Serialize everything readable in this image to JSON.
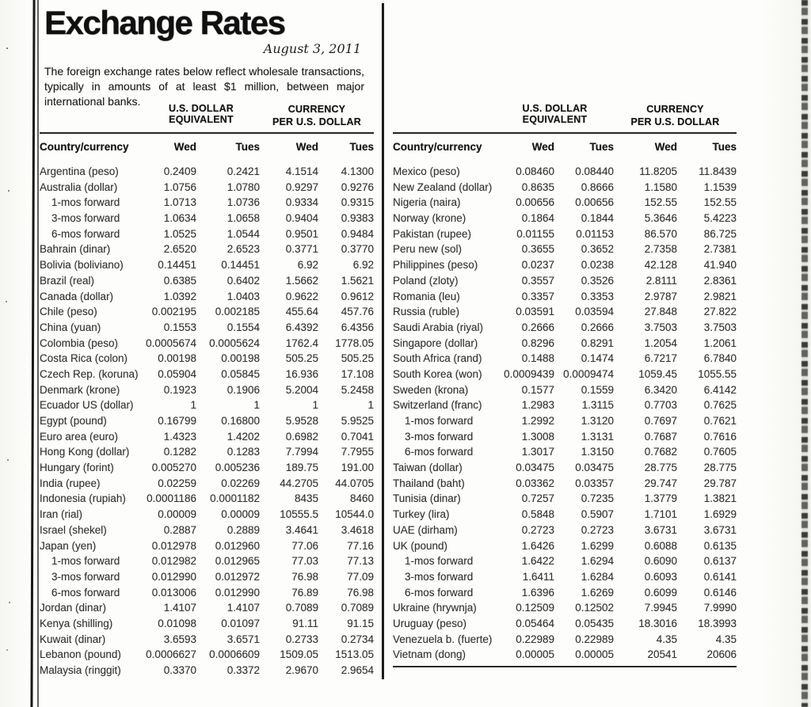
{
  "page": {
    "title": "Exchange Rates",
    "date": "August 3, 2011",
    "description": "The foreign exchange rates below reflect wholesale transactions, typically in amounts of at least $1 million, between major international banks."
  },
  "columns": {
    "group_usd": "U.S. DOLLAR EQUIVALENT",
    "group_currency_line1": "CURRENCY",
    "group_currency_line2": "PER U.S. DOLLAR",
    "country": "Country/currency",
    "day1": "Wed",
    "day2": "Tues"
  },
  "tables": {
    "left": {
      "rows": [
        {
          "country": "Argentina (peso)",
          "indent": false,
          "usd_wed": "0.2409",
          "usd_tues": "0.2421",
          "per_wed": "4.1514",
          "per_tues": "4.1300"
        },
        {
          "country": "Australia (dollar)",
          "indent": false,
          "usd_wed": "1.0756",
          "usd_tues": "1.0780",
          "per_wed": "0.9297",
          "per_tues": "0.9276"
        },
        {
          "country": "1-mos forward",
          "indent": true,
          "usd_wed": "1.0713",
          "usd_tues": "1.0736",
          "per_wed": "0.9334",
          "per_tues": "0.9315"
        },
        {
          "country": "3-mos forward",
          "indent": true,
          "usd_wed": "1.0634",
          "usd_tues": "1.0658",
          "per_wed": "0.9404",
          "per_tues": "0.9383"
        },
        {
          "country": "6-mos forward",
          "indent": true,
          "usd_wed": "1.0525",
          "usd_tues": "1.0544",
          "per_wed": "0.9501",
          "per_tues": "0.9484"
        },
        {
          "country": "Bahrain (dinar)",
          "indent": false,
          "usd_wed": "2.6520",
          "usd_tues": "2.6523",
          "per_wed": "0.3771",
          "per_tues": "0.3770"
        },
        {
          "country": "Bolivia (boliviano)",
          "indent": false,
          "usd_wed": "0.14451",
          "usd_tues": "0.14451",
          "per_wed": "6.92",
          "per_tues": "6.92"
        },
        {
          "country": "Brazil (real)",
          "indent": false,
          "usd_wed": "0.6385",
          "usd_tues": "0.6402",
          "per_wed": "1.5662",
          "per_tues": "1.5621"
        },
        {
          "country": "Canada (dollar)",
          "indent": false,
          "usd_wed": "1.0392",
          "usd_tues": "1.0403",
          "per_wed": "0.9622",
          "per_tues": "0.9612"
        },
        {
          "country": "Chile (peso)",
          "indent": false,
          "usd_wed": "0.002195",
          "usd_tues": "0.002185",
          "per_wed": "455.64",
          "per_tues": "457.76"
        },
        {
          "country": "China (yuan)",
          "indent": false,
          "usd_wed": "0.1553",
          "usd_tues": "0.1554",
          "per_wed": "6.4392",
          "per_tues": "6.4356"
        },
        {
          "country": "Colombia (peso)",
          "indent": false,
          "usd_wed": "0.0005674",
          "usd_tues": "0.0005624",
          "per_wed": "1762.4",
          "per_tues": "1778.05"
        },
        {
          "country": "Costa Rica (colon)",
          "indent": false,
          "usd_wed": "0.00198",
          "usd_tues": "0.00198",
          "per_wed": "505.25",
          "per_tues": "505.25"
        },
        {
          "country": "Czech Rep. (koruna)",
          "indent": false,
          "usd_wed": "0.05904",
          "usd_tues": "0.05845",
          "per_wed": "16.936",
          "per_tues": "17.108"
        },
        {
          "country": "Denmark (krone)",
          "indent": false,
          "usd_wed": "0.1923",
          "usd_tues": "0.1906",
          "per_wed": "5.2004",
          "per_tues": "5.2458"
        },
        {
          "country": "Ecuador US (dollar)",
          "indent": false,
          "usd_wed": "1",
          "usd_tues": "1",
          "per_wed": "1",
          "per_tues": "1"
        },
        {
          "country": "Egypt (pound)",
          "indent": false,
          "usd_wed": "0.16799",
          "usd_tues": "0.16800",
          "per_wed": "5.9528",
          "per_tues": "5.9525"
        },
        {
          "country": "Euro area (euro)",
          "indent": false,
          "usd_wed": "1.4323",
          "usd_tues": "1.4202",
          "per_wed": "0.6982",
          "per_tues": "0.7041"
        },
        {
          "country": "Hong Kong (dollar)",
          "indent": false,
          "usd_wed": "0.1282",
          "usd_tues": "0.1283",
          "per_wed": "7.7994",
          "per_tues": "7.7955"
        },
        {
          "country": "Hungary (forint)",
          "indent": false,
          "usd_wed": "0.005270",
          "usd_tues": "0.005236",
          "per_wed": "189.75",
          "per_tues": "191.00"
        },
        {
          "country": "India (rupee)",
          "indent": false,
          "usd_wed": "0.02259",
          "usd_tues": "0.02269",
          "per_wed": "44.2705",
          "per_tues": "44.0705"
        },
        {
          "country": "Indonesia (rupiah)",
          "indent": false,
          "usd_wed": "0.0001186",
          "usd_tues": "0.0001182",
          "per_wed": "8435",
          "per_tues": "8460"
        },
        {
          "country": "Iran (rial)",
          "indent": false,
          "usd_wed": "0.00009",
          "usd_tues": "0.00009",
          "per_wed": "10555.5",
          "per_tues": "10544.0"
        },
        {
          "country": "Israel (shekel)",
          "indent": false,
          "usd_wed": "0.2887",
          "usd_tues": "0.2889",
          "per_wed": "3.4641",
          "per_tues": "3.4618"
        },
        {
          "country": "Japan (yen)",
          "indent": false,
          "usd_wed": "0.012978",
          "usd_tues": "0.012960",
          "per_wed": "77.06",
          "per_tues": "77.16"
        },
        {
          "country": "1-mos forward",
          "indent": true,
          "usd_wed": "0.012982",
          "usd_tues": "0.012965",
          "per_wed": "77.03",
          "per_tues": "77.13"
        },
        {
          "country": "3-mos forward",
          "indent": true,
          "usd_wed": "0.012990",
          "usd_tues": "0.012972",
          "per_wed": "76.98",
          "per_tues": "77.09"
        },
        {
          "country": "6-mos forward",
          "indent": true,
          "usd_wed": "0.013006",
          "usd_tues": "0.012990",
          "per_wed": "76.89",
          "per_tues": "76.98"
        },
        {
          "country": "Jordan (dinar)",
          "indent": false,
          "usd_wed": "1.4107",
          "usd_tues": "1.4107",
          "per_wed": "0.7089",
          "per_tues": "0.7089"
        },
        {
          "country": "Kenya (shilling)",
          "indent": false,
          "usd_wed": "0.01098",
          "usd_tues": "0.01097",
          "per_wed": "91.11",
          "per_tues": "91.15"
        },
        {
          "country": "Kuwait (dinar)",
          "indent": false,
          "usd_wed": "3.6593",
          "usd_tues": "3.6571",
          "per_wed": "0.2733",
          "per_tues": "0.2734"
        },
        {
          "country": "Lebanon (pound)",
          "indent": false,
          "usd_wed": "0.0006627",
          "usd_tues": "0.0006609",
          "per_wed": "1509.05",
          "per_tues": "1513.05"
        },
        {
          "country": "Malaysia (ringgit)",
          "indent": false,
          "usd_wed": "0.3370",
          "usd_tues": "0.3372",
          "per_wed": "2.9670",
          "per_tues": "2.9654"
        }
      ]
    },
    "right": {
      "rows": [
        {
          "country": "Mexico (peso)",
          "indent": false,
          "usd_wed": "0.08460",
          "usd_tues": "0.08440",
          "per_wed": "11.8205",
          "per_tues": "11.8439"
        },
        {
          "country": "New Zealand (dollar)",
          "indent": false,
          "usd_wed": "0.8635",
          "usd_tues": "0.8666",
          "per_wed": "1.1580",
          "per_tues": "1.1539"
        },
        {
          "country": "Nigeria (naira)",
          "indent": false,
          "usd_wed": "0.00656",
          "usd_tues": "0.00656",
          "per_wed": "152.55",
          "per_tues": "152.55"
        },
        {
          "country": "Norway (krone)",
          "indent": false,
          "usd_wed": "0.1864",
          "usd_tues": "0.1844",
          "per_wed": "5.3646",
          "per_tues": "5.4223"
        },
        {
          "country": "Pakistan (rupee)",
          "indent": false,
          "usd_wed": "0.01155",
          "usd_tues": "0.01153",
          "per_wed": "86.570",
          "per_tues": "86.725"
        },
        {
          "country": "Peru new (sol)",
          "indent": false,
          "usd_wed": "0.3655",
          "usd_tues": "0.3652",
          "per_wed": "2.7358",
          "per_tues": "2.7381"
        },
        {
          "country": "Philippines (peso)",
          "indent": false,
          "usd_wed": "0.0237",
          "usd_tues": "0.0238",
          "per_wed": "42.128",
          "per_tues": "41.940"
        },
        {
          "country": "Poland (zloty)",
          "indent": false,
          "usd_wed": "0.3557",
          "usd_tues": "0.3526",
          "per_wed": "2.8111",
          "per_tues": "2.8361"
        },
        {
          "country": "Romania (leu)",
          "indent": false,
          "usd_wed": "0.3357",
          "usd_tues": "0.3353",
          "per_wed": "2.9787",
          "per_tues": "2.9821"
        },
        {
          "country": "Russia (ruble)",
          "indent": false,
          "usd_wed": "0.03591",
          "usd_tues": "0.03594",
          "per_wed": "27.848",
          "per_tues": "27.822"
        },
        {
          "country": "Saudi Arabia (riyal)",
          "indent": false,
          "usd_wed": "0.2666",
          "usd_tues": "0.2666",
          "per_wed": "3.7503",
          "per_tues": "3.7503"
        },
        {
          "country": "Singapore (dollar)",
          "indent": false,
          "usd_wed": "0.8296",
          "usd_tues": "0.8291",
          "per_wed": "1.2054",
          "per_tues": "1.2061"
        },
        {
          "country": "South Africa (rand)",
          "indent": false,
          "usd_wed": "0.1488",
          "usd_tues": "0.1474",
          "per_wed": "6.7217",
          "per_tues": "6.7840"
        },
        {
          "country": "South Korea (won)",
          "indent": false,
          "usd_wed": "0.0009439",
          "usd_tues": "0.0009474",
          "per_wed": "1059.45",
          "per_tues": "1055.55"
        },
        {
          "country": "Sweden (krona)",
          "indent": false,
          "usd_wed": "0.1577",
          "usd_tues": "0.1559",
          "per_wed": "6.3420",
          "per_tues": "6.4142"
        },
        {
          "country": "Switzerland (franc)",
          "indent": false,
          "usd_wed": "1.2983",
          "usd_tues": "1.3115",
          "per_wed": "0.7703",
          "per_tues": "0.7625"
        },
        {
          "country": "1-mos forward",
          "indent": true,
          "usd_wed": "1.2992",
          "usd_tues": "1.3120",
          "per_wed": "0.7697",
          "per_tues": "0.7621"
        },
        {
          "country": "3-mos forward",
          "indent": true,
          "usd_wed": "1.3008",
          "usd_tues": "1.3131",
          "per_wed": "0.7687",
          "per_tues": "0.7616"
        },
        {
          "country": "6-mos forward",
          "indent": true,
          "usd_wed": "1.3017",
          "usd_tues": "1.3150",
          "per_wed": "0.7682",
          "per_tues": "0.7605"
        },
        {
          "country": "Taiwan (dollar)",
          "indent": false,
          "usd_wed": "0.03475",
          "usd_tues": "0.03475",
          "per_wed": "28.775",
          "per_tues": "28.775"
        },
        {
          "country": "Thailand (baht)",
          "indent": false,
          "usd_wed": "0.03362",
          "usd_tues": "0.03357",
          "per_wed": "29.747",
          "per_tues": "29.787"
        },
        {
          "country": "Tunisia (dinar)",
          "indent": false,
          "usd_wed": "0.7257",
          "usd_tues": "0.7235",
          "per_wed": "1.3779",
          "per_tues": "1.3821"
        },
        {
          "country": "Turkey (lira)",
          "indent": false,
          "usd_wed": "0.5848",
          "usd_tues": "0.5907",
          "per_wed": "1.7101",
          "per_tues": "1.6929"
        },
        {
          "country": "UAE (dirham)",
          "indent": false,
          "usd_wed": "0.2723",
          "usd_tues": "0.2723",
          "per_wed": "3.6731",
          "per_tues": "3.6731"
        },
        {
          "country": "UK (pound)",
          "indent": false,
          "usd_wed": "1.6426",
          "usd_tues": "1.6299",
          "per_wed": "0.6088",
          "per_tues": "0.6135"
        },
        {
          "country": "1-mos forward",
          "indent": true,
          "usd_wed": "1.6422",
          "usd_tues": "1.6294",
          "per_wed": "0.6090",
          "per_tues": "0.6137"
        },
        {
          "country": "3-mos forward",
          "indent": true,
          "usd_wed": "1.6411",
          "usd_tues": "1.6284",
          "per_wed": "0.6093",
          "per_tues": "0.6141"
        },
        {
          "country": "6-mos forward",
          "indent": true,
          "usd_wed": "1.6396",
          "usd_tues": "1.6269",
          "per_wed": "0.6099",
          "per_tues": "0.6146"
        },
        {
          "country": "Ukraine (hrywnja)",
          "indent": false,
          "usd_wed": "0.12509",
          "usd_tues": "0.12502",
          "per_wed": "7.9945",
          "per_tues": "7.9990"
        },
        {
          "country": "Uruguay (peso)",
          "indent": false,
          "usd_wed": "0.05464",
          "usd_tues": "0.05435",
          "per_wed": "18.3016",
          "per_tues": "18.3993"
        },
        {
          "country": "Venezuela b. (fuerte)",
          "indent": false,
          "usd_wed": "0.22989",
          "usd_tues": "0.22989",
          "per_wed": "4.35",
          "per_tues": "4.35"
        },
        {
          "country": "Vietnam (dong)",
          "indent": false,
          "usd_wed": "0.00005",
          "usd_tues": "0.00005",
          "per_wed": "20541",
          "per_tues": "20606"
        }
      ]
    }
  }
}
